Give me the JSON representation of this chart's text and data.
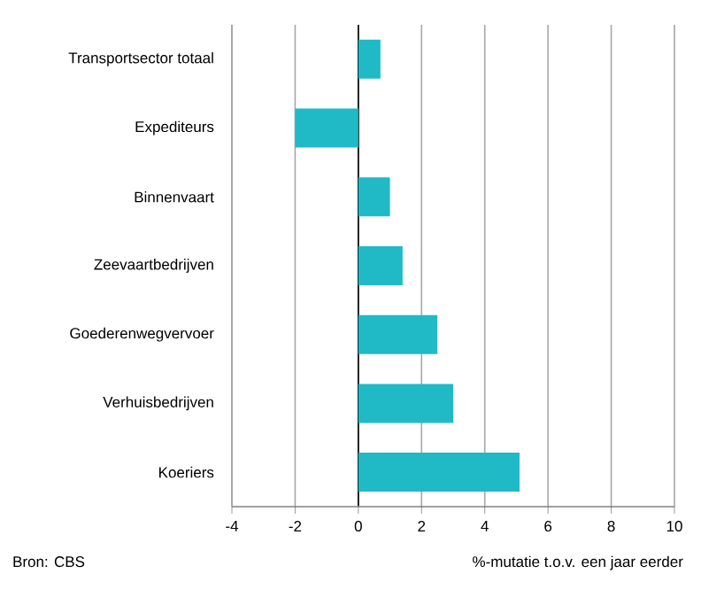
{
  "chart_data": {
    "type": "bar",
    "orientation": "horizontal",
    "categories": [
      "Transportsector totaal",
      "Expediteurs",
      "Binnenvaart",
      "Zeevaartbedrijven",
      "Goederenwegvervoer",
      "Verhuisbedrijven",
      "Koeriers"
    ],
    "values": [
      0.7,
      -2.0,
      1.0,
      1.4,
      2.5,
      3.0,
      5.1
    ],
    "color": "#1fbac6",
    "xlim": [
      -4,
      10
    ],
    "xticks": [
      -4,
      -2,
      0,
      2,
      4,
      6,
      8,
      10
    ],
    "xlabel": "%-mutatie t.o.v. een jaar eerder",
    "annotations": [
      "Bron: CBS"
    ],
    "grid": "x"
  }
}
